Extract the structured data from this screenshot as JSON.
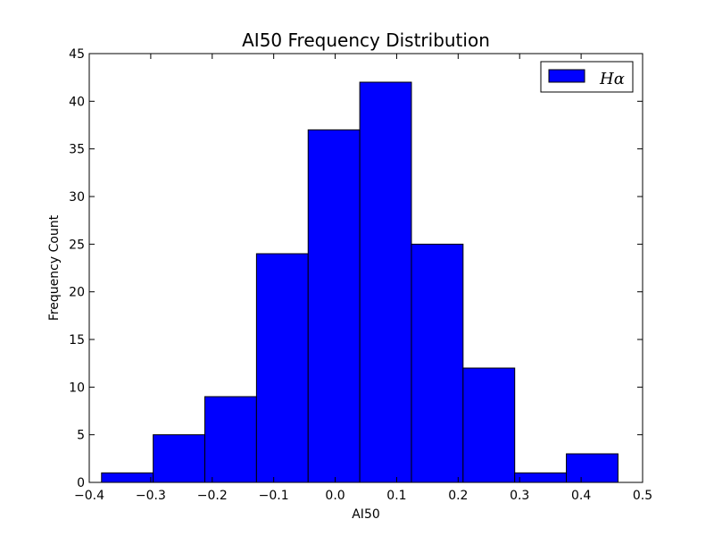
{
  "chart_data": {
    "type": "bar",
    "subtype": "histogram",
    "title": "AI50 Frequency Distribution",
    "xlabel": "AI50",
    "ylabel": "Frequency Count",
    "xlim": [
      -0.4,
      0.5
    ],
    "ylim": [
      0,
      45
    ],
    "xticks": [
      -0.4,
      -0.3,
      -0.2,
      -0.1,
      0.0,
      0.1,
      0.2,
      0.3,
      0.4,
      0.5
    ],
    "xtick_labels": [
      "−0.4",
      "−0.3",
      "−0.2",
      "−0.1",
      "0.0",
      "0.1",
      "0.2",
      "0.3",
      "0.4",
      "0.5"
    ],
    "yticks": [
      0,
      5,
      10,
      15,
      20,
      25,
      30,
      35,
      40,
      45
    ],
    "ytick_labels": [
      "0",
      "5",
      "10",
      "15",
      "20",
      "25",
      "30",
      "35",
      "40",
      "45"
    ],
    "bin_edges": [
      -0.38,
      -0.296,
      -0.212,
      -0.128,
      -0.044,
      0.04,
      0.124,
      0.208,
      0.292,
      0.376,
      0.46
    ],
    "series": [
      {
        "name": "Hα",
        "values": [
          1,
          5,
          9,
          24,
          37,
          42,
          25,
          12,
          1,
          3
        ]
      }
    ],
    "grid": false,
    "legend_position": "top-right",
    "colors": {
      "bar": "#0000ff",
      "edge": "#000000"
    }
  }
}
